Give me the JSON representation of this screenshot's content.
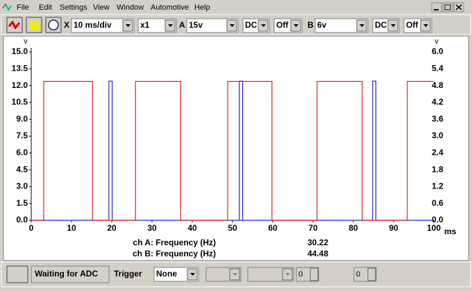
{
  "menu": [
    "File",
    "Edit",
    "Settings",
    "View",
    "Window",
    "Automotive",
    "Help"
  ],
  "toolbar": {
    "x_label": "X",
    "timebase": "10 ms/div",
    "multiplier": "x1",
    "channel_a": {
      "label": "A",
      "range": "15v",
      "coupling": "DC",
      "offset": "Off"
    },
    "channel_b": {
      "label": "B",
      "range": "6v",
      "coupling": "DC",
      "offset": "Off"
    }
  },
  "chart_data": {
    "type": "line",
    "x_label": "ms",
    "y_label": "v",
    "y2_label": "v",
    "xlim": [
      0,
      100
    ],
    "xticks": [
      0,
      10,
      20,
      30,
      40,
      50,
      60,
      70,
      80,
      90,
      100
    ],
    "ylim": [
      0,
      15
    ],
    "yticks": [
      {
        "value": 0,
        "label": "0.0"
      },
      {
        "value": 1.5,
        "label": "1.5"
      },
      {
        "value": 3,
        "label": "3.0"
      },
      {
        "value": 4.5,
        "label": "4.5"
      },
      {
        "value": 6,
        "label": "6.0"
      },
      {
        "value": 7.5,
        "label": "7.5"
      },
      {
        "value": 9,
        "label": "9.0"
      },
      {
        "value": 10.5,
        "label": "10.5"
      },
      {
        "value": 12,
        "label": "12.0"
      },
      {
        "value": 13.5,
        "label": "13.5"
      },
      {
        "value": 15,
        "label": "15.0"
      }
    ],
    "y2lim": [
      0,
      6
    ],
    "y2ticks": [
      {
        "value": 0,
        "label": "0.0"
      },
      {
        "value": 0.6,
        "label": "0.6"
      },
      {
        "value": 1.2,
        "label": "1.2"
      },
      {
        "value": 1.8,
        "label": "1.8"
      },
      {
        "value": 2.4,
        "label": "2.4"
      },
      {
        "value": 3,
        "label": "3.0"
      },
      {
        "value": 3.6,
        "label": "3.6"
      },
      {
        "value": 4.2,
        "label": "4.2"
      },
      {
        "value": 4.8,
        "label": "4.8"
      },
      {
        "value": 5.4,
        "label": "5.4"
      },
      {
        "value": 6,
        "label": "6.0"
      }
    ],
    "series": [
      {
        "color": "#2020e0",
        "axis": "y",
        "x": [
          0,
          19.3,
          19.3,
          20.1,
          20.1,
          51.7,
          51.7,
          52.5,
          52.5,
          84.8,
          84.8,
          85.6,
          85.6,
          100
        ],
        "values": [
          0,
          0,
          12.4,
          12.4,
          0,
          0,
          12.4,
          12.4,
          0,
          0,
          12.4,
          12.4,
          0,
          0
        ]
      },
      {
        "color": "#e02020",
        "axis": "y2",
        "x": [
          0,
          3.1,
          3.1,
          15.2,
          15.2,
          25.9,
          25.9,
          37.1,
          37.1,
          48.8,
          48.8,
          59.8,
          59.8,
          71,
          71,
          82.2,
          82.2,
          93.4,
          93.4,
          100
        ],
        "values": [
          0,
          0,
          4.95,
          4.95,
          0,
          0,
          4.95,
          4.95,
          0,
          0,
          4.95,
          4.95,
          0,
          0,
          4.95,
          4.95,
          0,
          0,
          4.95,
          4.95
        ]
      }
    ]
  },
  "measurements": [
    {
      "label": "ch A: Frequency (Hz)",
      "value": "30.22"
    },
    {
      "label": "ch B: Frequency (Hz)",
      "value": "44.48"
    }
  ],
  "status": {
    "text": "Waiting for ADC",
    "trigger_label": "Trigger",
    "trigger_mode": "None",
    "spin_1": "0",
    "spin_2": "0"
  }
}
